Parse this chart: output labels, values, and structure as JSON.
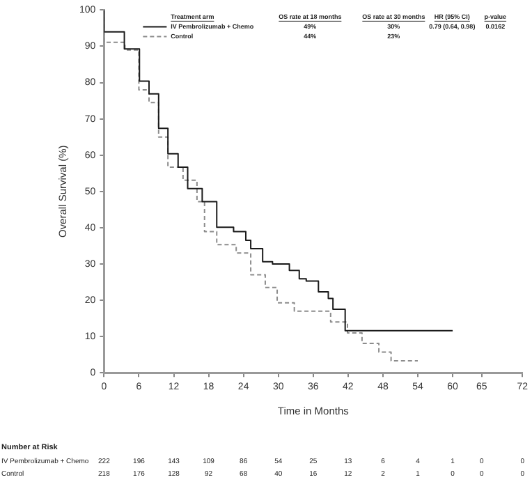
{
  "chart_data": {
    "type": "step",
    "xlabel": "Time in Months",
    "ylabel": "Overall Survival (%)",
    "xlim": [
      0,
      72
    ],
    "xticks": [
      0,
      6,
      12,
      18,
      24,
      30,
      36,
      42,
      48,
      54,
      60,
      65,
      72
    ],
    "ylim": [
      0,
      100
    ],
    "yticks": [
      0,
      10,
      20,
      30,
      40,
      50,
      60,
      70,
      80,
      90,
      100
    ],
    "grid": false,
    "legend": "top left",
    "series": [
      {
        "name": "IV Pembrolizumab + Chemo",
        "color": "#1a1a1a",
        "line_style": "solid",
        "x": [
          0,
          3.5,
          6.1,
          7.75,
          9.4,
          11,
          12.75,
          14.4,
          16.9,
          19.4,
          22.3,
          24.4,
          25.25,
          27.3,
          29,
          31.9,
          33.6,
          34.8,
          36.9,
          38.6,
          39.4,
          41.5,
          57.3,
          60
        ],
        "values": [
          100,
          94,
          89.3,
          80.4,
          76.9,
          67.4,
          60.4,
          56.7,
          50.8,
          47.2,
          40.1,
          38.9,
          36.5,
          34.2,
          30.6,
          30,
          28.2,
          25.9,
          25.3,
          22.3,
          20.5,
          17.5,
          11.6,
          11.6
        ]
      },
      {
        "name": "Control",
        "color": "#8c8c8c",
        "line_style": "dashed",
        "x": [
          0,
          3.6,
          6,
          7.75,
          9.4,
          11,
          13.6,
          16,
          17.3,
          19.4,
          22.75,
          25.25,
          27.75,
          29.8,
          32.75,
          35.25,
          39,
          41.9,
          44.4,
          47.3,
          49.4,
          49.8,
          54
        ],
        "values": [
          100,
          91.1,
          89,
          78,
          74.5,
          65,
          56.7,
          53.1,
          47.2,
          38.9,
          35.3,
          33,
          27,
          23.5,
          19.3,
          17,
          17,
          14,
          11,
          8.1,
          5.7,
          3.3,
          3.3
        ]
      }
    ],
    "annotations": [
      "Treatment arm",
      "OS rate at 18 months",
      "OS rate at 30 months",
      "HR (95% CI)",
      "p-value",
      "49%",
      "30%",
      "0.79 (0.64, 0.98)",
      "0.0162",
      "44%",
      "23%",
      "Number at Risk",
      "222 196 143 109 86 54 25 13 6 4 1 0 0",
      "218 176 128 92 68 40 16 12 2 1 0 0 0"
    ]
  }
}
